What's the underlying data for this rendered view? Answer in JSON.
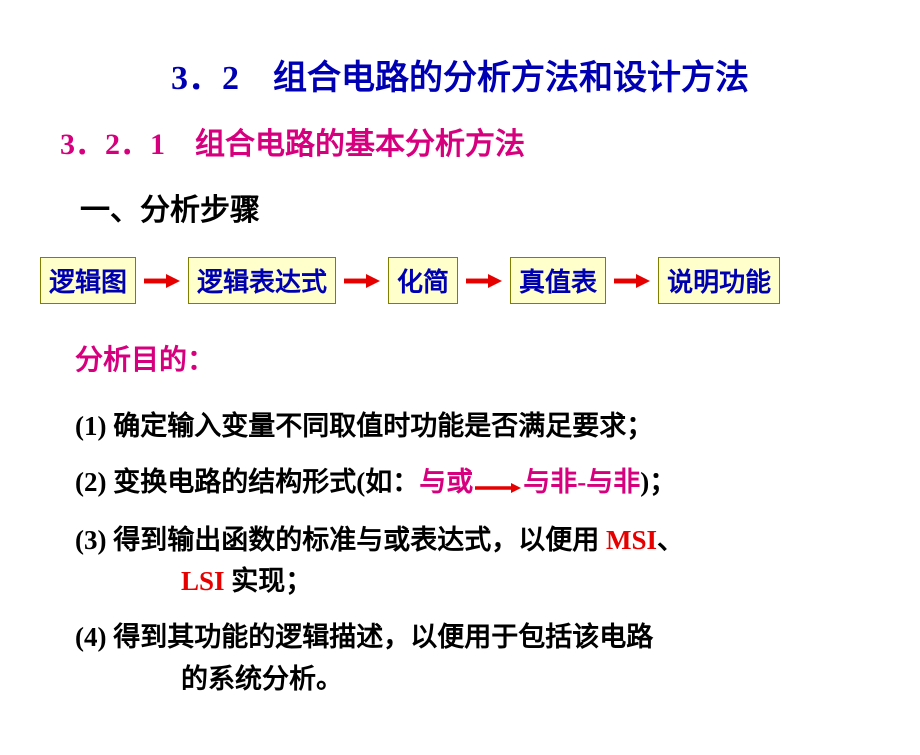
{
  "colors": {
    "blue": "#0000b3",
    "magenta": "#d6007f",
    "red": "#e60000",
    "black": "#000000",
    "box_fill": "#ffffcc",
    "box_border": "#808000",
    "arrow": "#e60000"
  },
  "title": "3．2　组合电路的分析方法和设计方法",
  "subtitle": "3．2．1　组合电路的基本分析方法",
  "steps_heading": "一、分析步骤",
  "flow": {
    "boxes": [
      "逻辑图",
      "逻辑表达式",
      "化简",
      "真值表",
      "说明功能"
    ],
    "arrow_width": 36,
    "arrow_height": 14
  },
  "purpose_label": "分析目的：",
  "items": [
    {
      "num": "(1)",
      "segments": [
        {
          "text": " 确定输入变量不同取值时功能是否满足要求；",
          "color": "black"
        }
      ]
    },
    {
      "num": "(2)",
      "segments": [
        {
          "text": " 变换电路的结构形式(如：",
          "color": "black"
        },
        {
          "text": "与或",
          "color": "magenta"
        },
        {
          "text": "__ARROW__",
          "color": "red"
        },
        {
          "text": "与非-与非",
          "color": "magenta"
        },
        {
          "text": ")；",
          "color": "black"
        }
      ]
    },
    {
      "num": "(3)",
      "segments": [
        {
          "text": " 得到输出函数的标准与或表达式，以便用 ",
          "color": "black"
        },
        {
          "text": "MSI",
          "color": "red"
        },
        {
          "text": "、",
          "color": "black"
        }
      ],
      "cont_segments": [
        {
          "text": "LSI",
          "color": "red"
        },
        {
          "text": " 实现；",
          "color": "black"
        }
      ]
    },
    {
      "num": "(4)",
      "segments": [
        {
          "text": " 得到其功能的逻辑描述，以便用于包括该电路",
          "color": "black"
        }
      ],
      "cont_segments": [
        {
          "text": "的系统分析。",
          "color": "black"
        }
      ]
    }
  ]
}
